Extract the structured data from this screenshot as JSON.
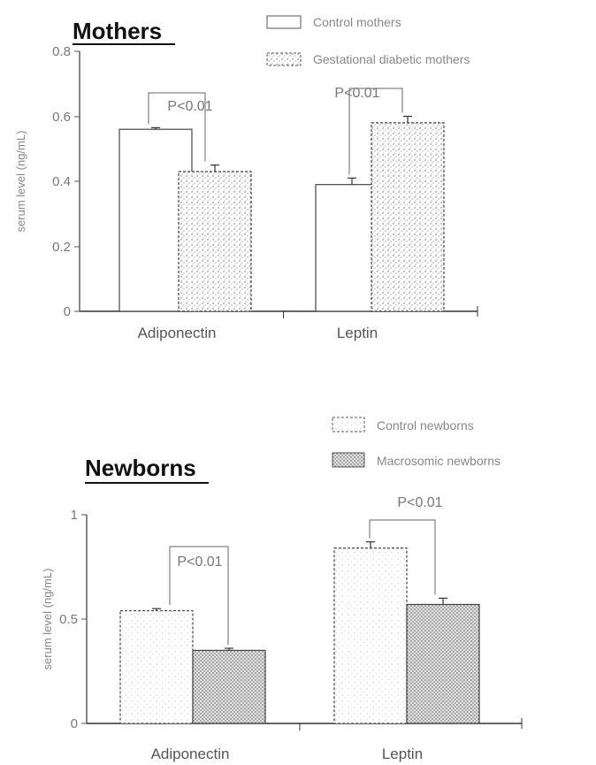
{
  "chart_data": [
    {
      "type": "bar",
      "title": "Mothers",
      "ylabel": "serum level (ng/mL)",
      "ylim": [
        0,
        0.8
      ],
      "yticks": [
        "0",
        "0.2",
        "0.4",
        "0.6",
        "0.8"
      ],
      "categories": [
        "Adiponectin",
        "Leptin"
      ],
      "series": [
        {
          "name": "Control mothers",
          "values": [
            0.56,
            0.39
          ],
          "errors": [
            0.005,
            0.02
          ],
          "color": "#ffffff",
          "pattern": "none"
        },
        {
          "name": "Gestational diabetic mothers",
          "values": [
            0.43,
            0.58
          ],
          "errors": [
            0.02,
            0.02
          ],
          "color": "#d8d8d8",
          "pattern": "speckle"
        }
      ],
      "annotations": [
        "P<0.01",
        "P<0.01"
      ],
      "legend": "top-right",
      "grid": false
    },
    {
      "type": "bar",
      "title": "Newborns",
      "ylabel": "serum level (ng/mL)",
      "ylim": [
        0,
        1
      ],
      "yticks": [
        "0",
        "0.5",
        "1"
      ],
      "categories": [
        "Adiponectin",
        "Leptin"
      ],
      "series": [
        {
          "name": "Control newborns",
          "values": [
            0.54,
            0.84
          ],
          "errors": [
            0.01,
            0.03
          ],
          "color": "#eeeeee",
          "pattern": "light-dots"
        },
        {
          "name": "Macrosomic newborns",
          "values": [
            0.35,
            0.57
          ],
          "errors": [
            0.01,
            0.03
          ],
          "color": "#bbbbbb",
          "pattern": "dense-dots"
        }
      ],
      "annotations": [
        "P<0.01",
        "P<0.01"
      ],
      "legend": "top-right",
      "grid": false
    }
  ]
}
